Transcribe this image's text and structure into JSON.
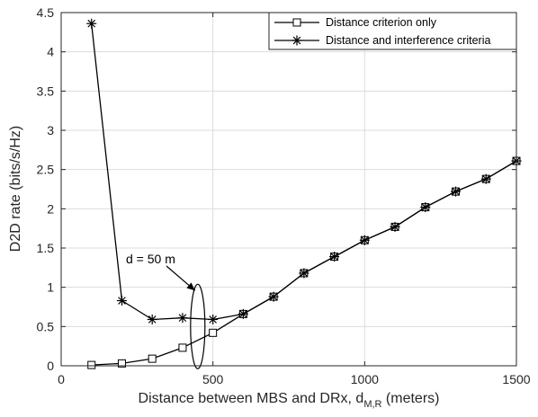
{
  "chart_data": {
    "type": "line",
    "xlabel": "Distance between MBS and DRx, d",
    "xlabel_subscript": "M,R",
    "xlabel_suffix": " (meters)",
    "ylabel": "D2D rate (bits/s/Hz)",
    "xlim": [
      0,
      1500
    ],
    "ylim": [
      0,
      4.5
    ],
    "xticks": [
      0,
      500,
      1000,
      1500
    ],
    "yticks": [
      0,
      0.5,
      1,
      1.5,
      2,
      2.5,
      3,
      3.5,
      4,
      4.5
    ],
    "grid": true,
    "legend_position": "top-right",
    "series": [
      {
        "name": "Distance criterion only",
        "marker": "square",
        "x": [
          100,
          200,
          300,
          400,
          500,
          600,
          700,
          800,
          900,
          1000,
          1100,
          1200,
          1300,
          1400,
          1500
        ],
        "y": [
          0.01,
          0.03,
          0.09,
          0.23,
          0.42,
          0.66,
          0.88,
          1.18,
          1.39,
          1.6,
          1.77,
          2.02,
          2.22,
          2.38,
          2.61
        ]
      },
      {
        "name": "Distance and interference criteria",
        "marker": "asterisk",
        "x": [
          100,
          200,
          300,
          400,
          500,
          600,
          700,
          800,
          900,
          1000,
          1100,
          1200,
          1300,
          1400,
          1500
        ],
        "y": [
          4.36,
          0.83,
          0.59,
          0.61,
          0.59,
          0.66,
          0.88,
          1.18,
          1.39,
          1.6,
          1.77,
          2.02,
          2.22,
          2.38,
          2.61
        ]
      }
    ],
    "annotations": [
      {
        "text": "d = 50 m",
        "x": 420,
        "y": 0.5
      }
    ]
  }
}
